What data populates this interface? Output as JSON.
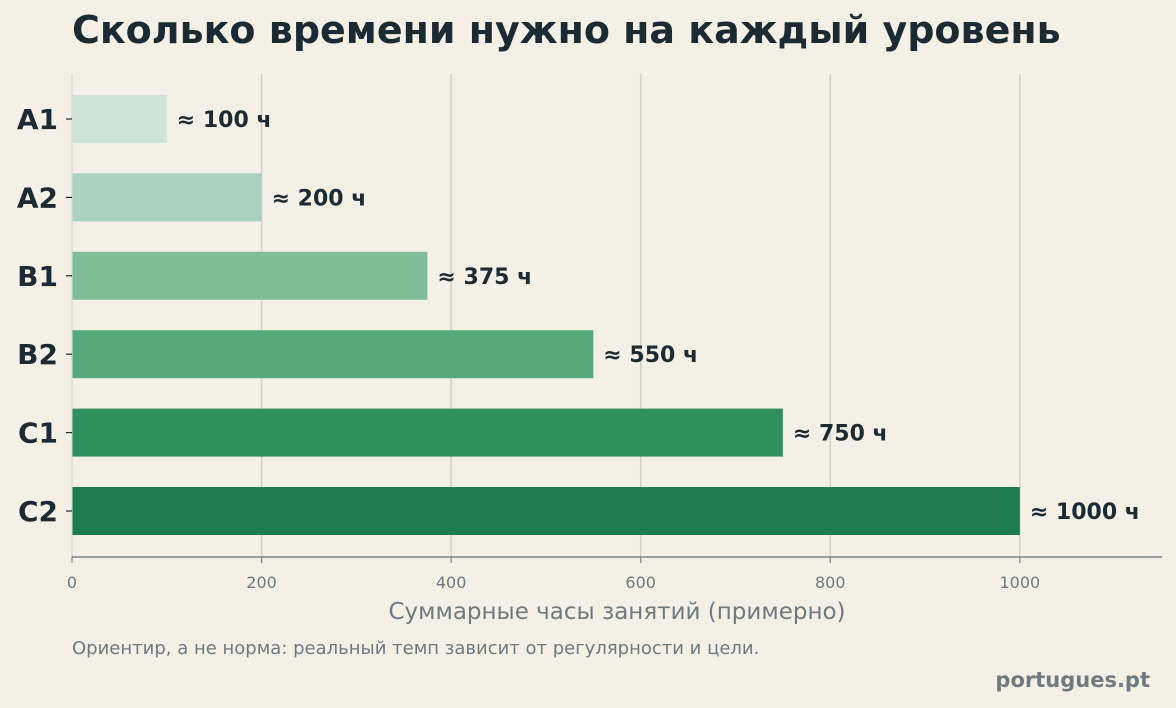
{
  "chart_data": {
    "type": "bar",
    "orientation": "horizontal",
    "title": "Сколько времени нужно на каждый уровень",
    "xlabel": "Суммарные часы занятий (примерно)",
    "ylabel": "",
    "categories": [
      "A1",
      "A2",
      "B1",
      "B2",
      "C1",
      "C2"
    ],
    "values": [
      100,
      200,
      375,
      550,
      750,
      1000
    ],
    "data_labels": [
      "≈ 100 ч",
      "≈ 200 ч",
      "≈ 375 ч",
      "≈ 550 ч",
      "≈ 750 ч",
      "≈ 1000 ч"
    ],
    "bar_colors": [
      "#cfe4d8",
      "#aad1bb",
      "#7fbe99",
      "#56a97c",
      "#2f8f5e",
      "#1e7b50"
    ],
    "xlim": [
      0,
      1150
    ],
    "xticks": [
      0,
      200,
      400,
      600,
      800,
      1000
    ],
    "grid": "vertical",
    "legend": "none"
  },
  "footnote": "Ориентир, а не норма: реальный темп зависит от регулярности и цели.",
  "brand": "portugues.pt"
}
